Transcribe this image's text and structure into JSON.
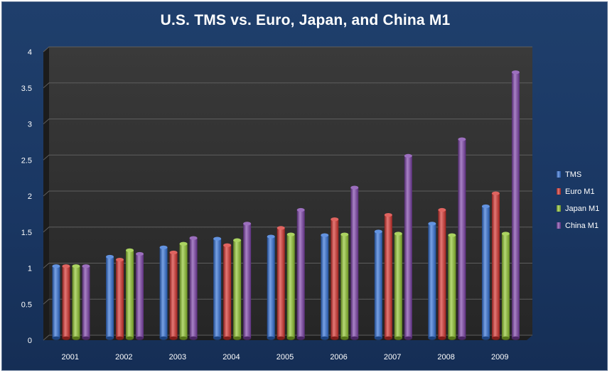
{
  "chart_data": {
    "type": "bar",
    "title": "U.S. TMS vs. Euro, Japan, and China M1",
    "categories": [
      "2001",
      "2002",
      "2003",
      "2004",
      "2005",
      "2006",
      "2007",
      "2008",
      "2009"
    ],
    "series": [
      {
        "name": "TMS",
        "color": "#2f6fd6",
        "values": [
          1.0,
          1.13,
          1.26,
          1.38,
          1.41,
          1.43,
          1.48,
          1.59,
          1.83
        ]
      },
      {
        "name": "Euro M1",
        "color": "#d6302b",
        "values": [
          1.0,
          1.09,
          1.19,
          1.29,
          1.53,
          1.65,
          1.71,
          1.78,
          2.01
        ]
      },
      {
        "name": "Japan M1",
        "color": "#8fc42c",
        "values": [
          1.0,
          1.22,
          1.31,
          1.36,
          1.44,
          1.44,
          1.45,
          1.43,
          1.45
        ]
      },
      {
        "name": "China M1",
        "color": "#7b3fa8",
        "values": [
          1.0,
          1.17,
          1.39,
          1.59,
          1.78,
          2.09,
          2.53,
          2.76,
          3.69
        ]
      }
    ],
    "y_ticks": [
      "0",
      "0.5",
      "1",
      "1.5",
      "2",
      "2.5",
      "3",
      "3.5",
      "4"
    ],
    "ylim": [
      0,
      4
    ],
    "grid": true,
    "legend_position": "right"
  }
}
